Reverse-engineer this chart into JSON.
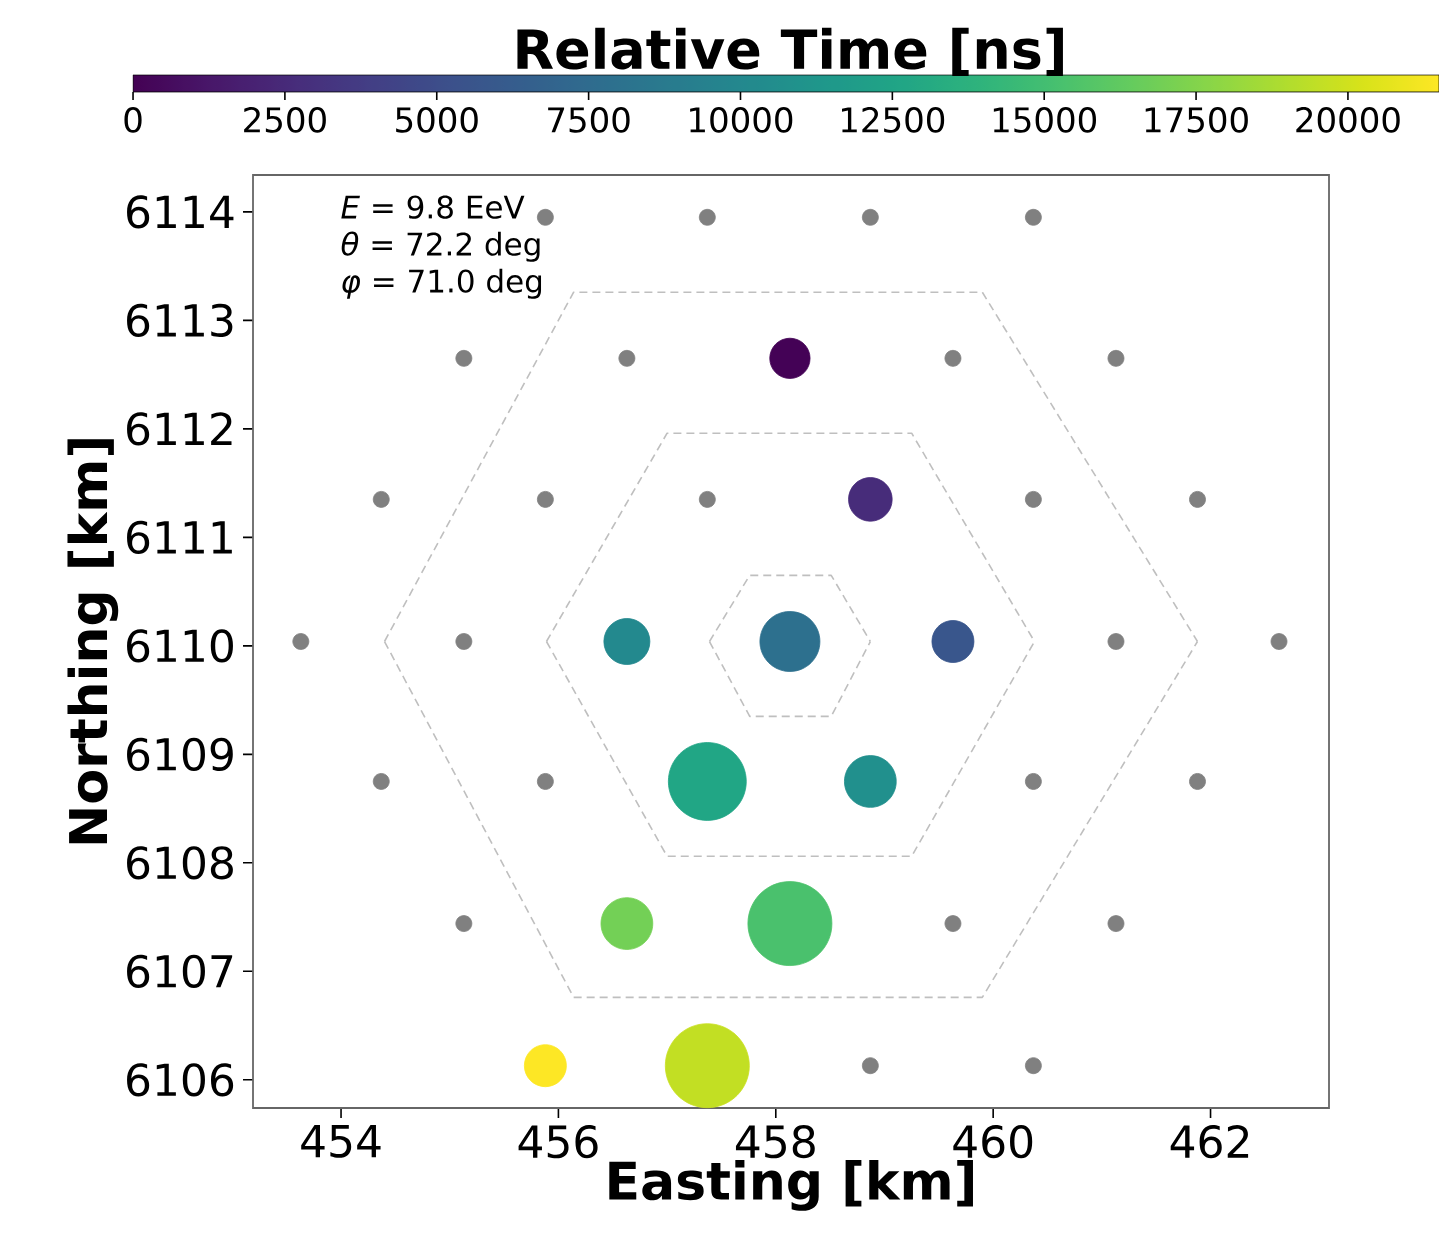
{
  "chart_data": {
    "type": "bubble",
    "xlabel": "Easting [km]",
    "ylabel": "Northing [km]",
    "clabel": "Relative Time [ns]",
    "xlim": [
      453.19,
      463.09
    ],
    "ylim": [
      6105.74,
      6114.34
    ],
    "xticks": [
      454,
      456,
      458,
      460,
      462
    ],
    "yticks": [
      6106,
      6107,
      6108,
      6109,
      6110,
      6111,
      6112,
      6113,
      6114
    ],
    "clim": [
      0,
      21500
    ],
    "cticks": [
      0,
      2500,
      5000,
      7500,
      10000,
      12500,
      15000,
      17500,
      20000
    ],
    "marker": "circle",
    "grid": false,
    "annotations": [
      "*E* = 9.8 EeV",
      "*θ* = 72.2 deg",
      "*φ* = 71.0 deg"
    ],
    "series": [
      {
        "type": "line",
        "marker": "none",
        "line_style": "dashed",
        "color": "#bfbfbf",
        "x": [
          457.39,
          457.76,
          458.51,
          458.87
        ],
        "values": [
          6110.04,
          6110.65,
          6110.65,
          6110.04
        ]
      },
      {
        "type": "line",
        "marker": "none",
        "line_style": "dashed",
        "color": "#bfbfbf",
        "x": [
          457.39,
          457.76,
          458.51,
          458.87
        ],
        "values": [
          6110.04,
          6109.35,
          6109.35,
          6110.04
        ]
      },
      {
        "type": "line",
        "marker": "none",
        "line_style": "dashed",
        "color": "#bfbfbf",
        "x": [
          455.89,
          457.0,
          459.25,
          460.38
        ],
        "values": [
          6110.04,
          6111.96,
          6111.96,
          6110.04
        ]
      },
      {
        "type": "line",
        "marker": "none",
        "line_style": "dashed",
        "color": "#bfbfbf",
        "x": [
          455.89,
          457.0,
          459.25,
          460.38
        ],
        "values": [
          6110.04,
          6108.06,
          6108.06,
          6110.04
        ]
      },
      {
        "type": "line",
        "marker": "none",
        "line_style": "dashed",
        "color": "#bfbfbf",
        "x": [
          454.4,
          456.14,
          459.9,
          461.88
        ],
        "values": [
          6110.04,
          6113.26,
          6113.26,
          6110.04
        ]
      },
      {
        "type": "line",
        "marker": "none",
        "line_style": "dashed",
        "color": "#bfbfbf",
        "x": [
          454.4,
          456.14,
          459.9,
          461.88
        ],
        "values": [
          6110.04,
          6106.76,
          6106.76,
          6110.04
        ]
      },
      {
        "type": "scatter",
        "color": "#808080",
        "x": [
          455.88,
          457.37,
          458.87,
          460.37,
          455.13,
          456.63,
          459.63,
          461.13,
          454.37,
          455.88,
          457.37,
          460.37,
          461.88,
          453.63,
          455.13,
          461.13,
          462.63,
          454.37,
          455.88,
          460.37,
          461.88,
          455.13,
          459.63,
          461.13,
          458.87,
          460.37
        ],
        "values": [
          6113.95,
          6113.95,
          6113.95,
          6113.95,
          6112.65,
          6112.65,
          6112.65,
          6112.65,
          6111.35,
          6111.35,
          6111.35,
          6111.35,
          6111.35,
          6110.04,
          6110.04,
          6110.04,
          6110.04,
          6108.75,
          6108.75,
          6108.75,
          6108.75,
          6107.44,
          6107.44,
          6107.44,
          6106.13,
          6106.13
        ]
      },
      {
        "x": [
          458.13,
          458.87,
          456.63,
          458.13,
          459.63,
          457.37,
          458.87,
          456.63,
          458.13,
          455.88,
          457.37
        ],
        "values": [
          6112.65,
          6111.35,
          6110.04,
          6110.04,
          6110.04,
          6108.75,
          6108.75,
          6107.44,
          6107.44,
          6106.13,
          6106.13
        ],
        "sizes": [
          0.23,
          0.27,
          0.3,
          0.51,
          0.25,
          0.86,
          0.38,
          0.38,
          1,
          0.25,
          1
        ],
        "cvalues": [
          200,
          2600,
          10000,
          7850,
          5700,
          12650,
          10600,
          17000,
          15500,
          21500,
          19800
        ],
        "colors": [
          "#440256",
          "#472c7a",
          "#23898e",
          "#2d708e",
          "#39568c",
          "#21a685",
          "#21908d",
          "#73d056",
          "#4ac16d",
          "#fde725",
          "#c2df23"
        ]
      }
    ]
  }
}
